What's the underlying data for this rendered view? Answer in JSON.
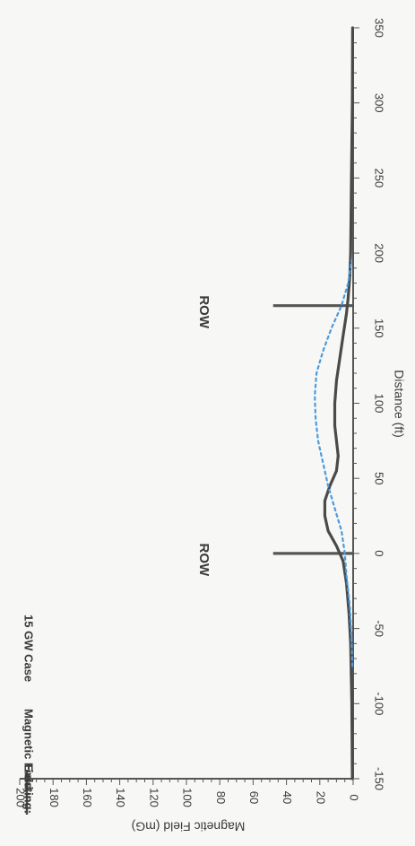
{
  "chart_data": {
    "type": "line",
    "title": "",
    "legend": {
      "placement": "top-left",
      "prefix": "Existing:",
      "field_label": "Magnetic Field",
      "case_label": "15 GW Case"
    },
    "xlabel": "Distance (ft)",
    "ylabel": "Magnetic Field (mG)",
    "xlim": [
      -150,
      350
    ],
    "ylim": [
      0,
      200
    ],
    "x_ticks": [
      "-150",
      "-100",
      "-50",
      "0",
      "50",
      "100",
      "150",
      "200",
      "250",
      "300",
      "350"
    ],
    "y_ticks": [
      "0",
      "20",
      "40",
      "60",
      "80",
      "100",
      "120",
      "140",
      "160",
      "180",
      "200"
    ],
    "grid": false,
    "orientation": "rotated 90° clockwise (scanned page)",
    "row_markers": [
      {
        "label": "ROW",
        "x": 0,
        "height": 48,
        "color": "#555555"
      },
      {
        "label": "ROW",
        "x": 165,
        "height": 48,
        "color": "#555555"
      }
    ],
    "series": [
      {
        "name": "Existing: Magnetic Field",
        "style": "solid",
        "color": "#4a4a4a",
        "x": [
          -150,
          -100,
          -60,
          -40,
          -20,
          -5,
          5,
          15,
          25,
          35,
          45,
          55,
          65,
          75,
          85,
          100,
          115,
          130,
          145,
          160,
          170,
          185,
          200,
          250,
          300,
          350
        ],
        "y": [
          0.5,
          0.8,
          1.5,
          2.5,
          4,
          6,
          10,
          15,
          17,
          17,
          14,
          10,
          9,
          10,
          11,
          11,
          10,
          8,
          6,
          4,
          3,
          2,
          1.5,
          1,
          0.5,
          0.3
        ]
      },
      {
        "name": "15 GW Case",
        "style": "dotted",
        "color": "#4a9be0",
        "x": [
          -75,
          -55,
          -35,
          -15,
          0,
          15,
          30,
          45,
          60,
          75,
          90,
          105,
          120,
          135,
          150,
          165,
          180,
          195
        ],
        "y": [
          0.5,
          1,
          2,
          4,
          5,
          7,
          11,
          15,
          18,
          21,
          22.5,
          23,
          22,
          18,
          13,
          7,
          3,
          1
        ]
      }
    ]
  }
}
